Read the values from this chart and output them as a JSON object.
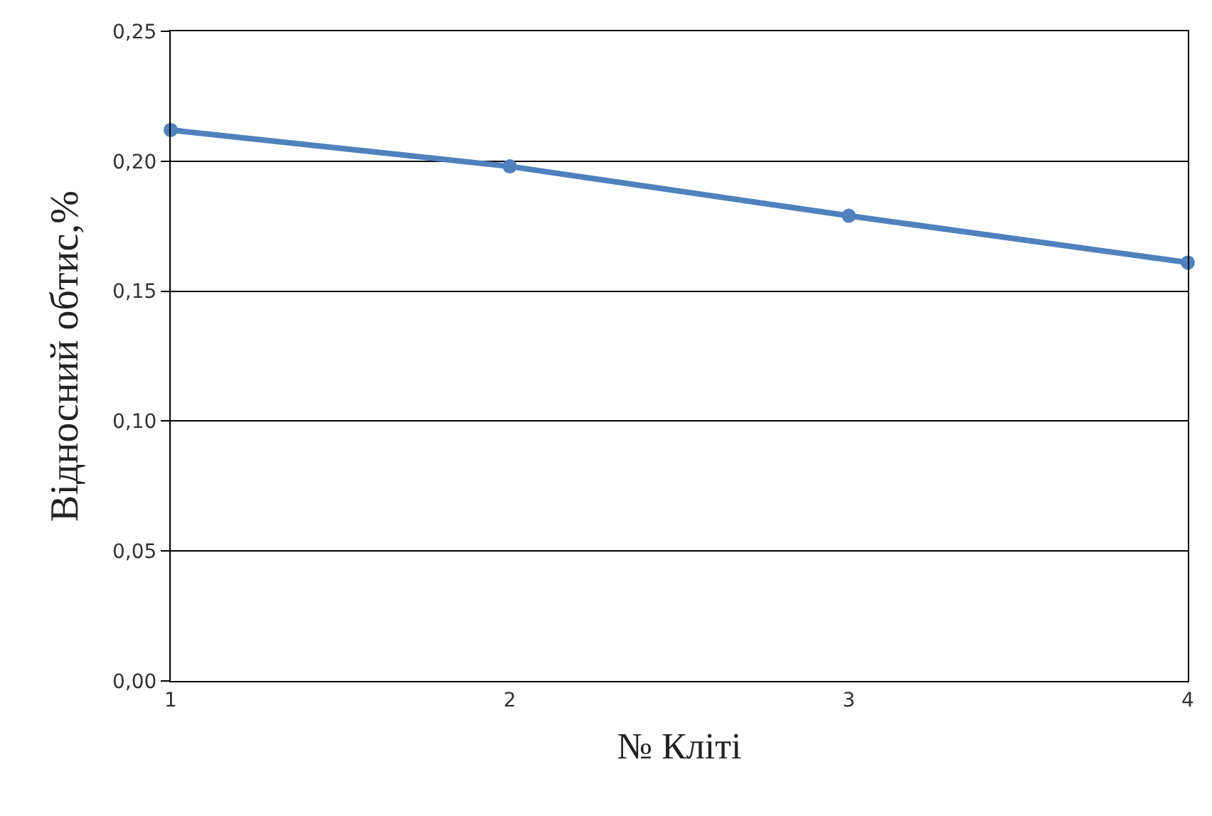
{
  "chart_data": {
    "type": "line",
    "xlabel": "№ Кліті",
    "ylabel": "Відносний обтис,%",
    "x": [
      1,
      2,
      3,
      4
    ],
    "series": [
      {
        "color": "#4f81bd",
        "values": [
          0.212,
          0.198,
          0.179,
          0.161
        ]
      }
    ],
    "xlim": [
      1,
      4
    ],
    "xticks": [
      1,
      2,
      3,
      4
    ],
    "ylim": [
      0,
      0.25
    ],
    "yticks": [
      {
        "value": 0,
        "label": "0,00"
      },
      {
        "value": 0.05,
        "label": "0,05"
      },
      {
        "value": 0.1,
        "label": "0,10"
      },
      {
        "value": 0.15,
        "label": "0,15"
      },
      {
        "value": 0.2,
        "label": "0,20"
      },
      {
        "value": 0.25,
        "label": "0,25"
      }
    ],
    "grid": "y",
    "marker": "circle",
    "line_style": "solid",
    "legend": false
  }
}
